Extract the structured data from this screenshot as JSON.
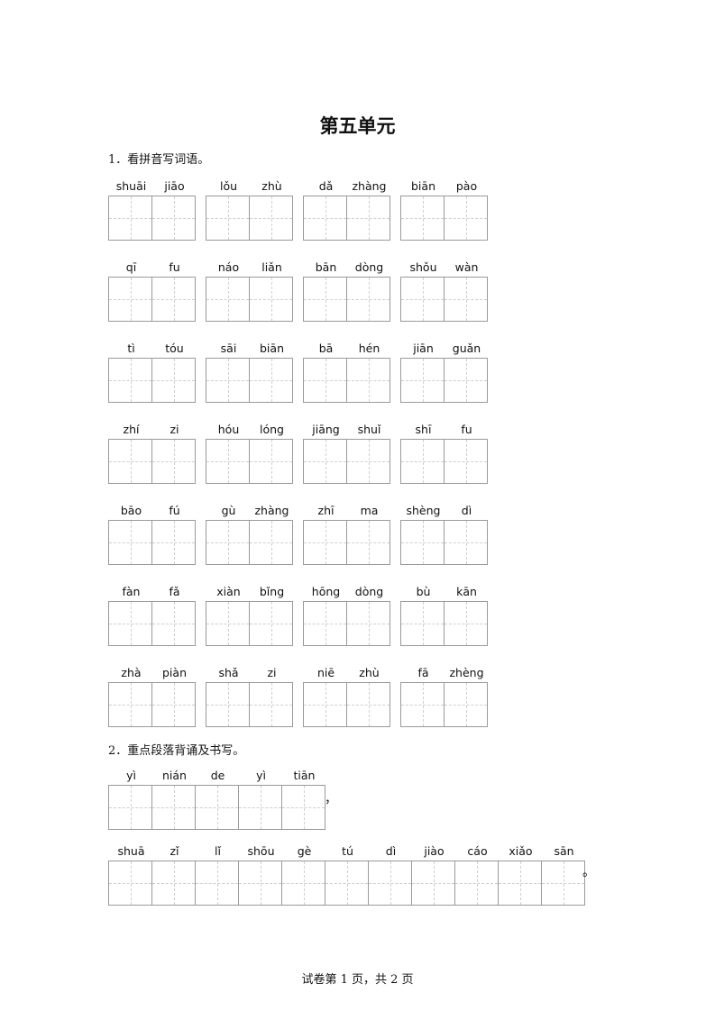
{
  "title": "第五单元",
  "section1": {
    "heading": "1．看拼音写词语。",
    "rows": [
      [
        [
          "shuāi",
          "jiāo"
        ],
        [
          "lǒu",
          "zhù"
        ],
        [
          "dǎ",
          "zhàng"
        ],
        [
          "biān",
          "pào"
        ]
      ],
      [
        [
          "qī",
          "fu"
        ],
        [
          "náo",
          "liǎn"
        ],
        [
          "bān",
          "dòng"
        ],
        [
          "shǒu",
          "wàn"
        ]
      ],
      [
        [
          "tì",
          "tóu"
        ],
        [
          "sāi",
          "biān"
        ],
        [
          "bā",
          "hén"
        ],
        [
          "jiān",
          "guǎn"
        ]
      ],
      [
        [
          "zhí",
          "zi"
        ],
        [
          "hóu",
          "lóng"
        ],
        [
          "jiāng",
          "shuǐ"
        ],
        [
          "shī",
          "fu"
        ]
      ],
      [
        [
          "bāo",
          "fú"
        ],
        [
          "gù",
          "zhàng"
        ],
        [
          "zhī",
          "ma"
        ],
        [
          "shèng",
          "dì"
        ]
      ],
      [
        [
          "fàn",
          "fǎ"
        ],
        [
          "xiàn",
          "bǐng"
        ],
        [
          "hōng",
          "dòng"
        ],
        [
          "bù",
          "kān"
        ]
      ],
      [
        [
          "zhà",
          "piàn"
        ],
        [
          "shǎ",
          "zi"
        ],
        [
          "niē",
          "zhù"
        ],
        [
          "fā",
          "zhèng"
        ]
      ]
    ]
  },
  "section2": {
    "heading": "2．重点段落背诵及书写。",
    "line1": {
      "pinyin": [
        "yì",
        "nián",
        "de",
        "yì",
        "tiān"
      ],
      "end_punct": "，"
    },
    "line2": {
      "pinyin": [
        "shuā",
        "zǐ",
        "lǐ",
        "shōu",
        "gè",
        "tú",
        "dì",
        "jiào",
        "cáo",
        "xiǎo",
        "sān"
      ],
      "end_punct": "。"
    }
  },
  "footer": "试卷第 1 页，共 2 页"
}
